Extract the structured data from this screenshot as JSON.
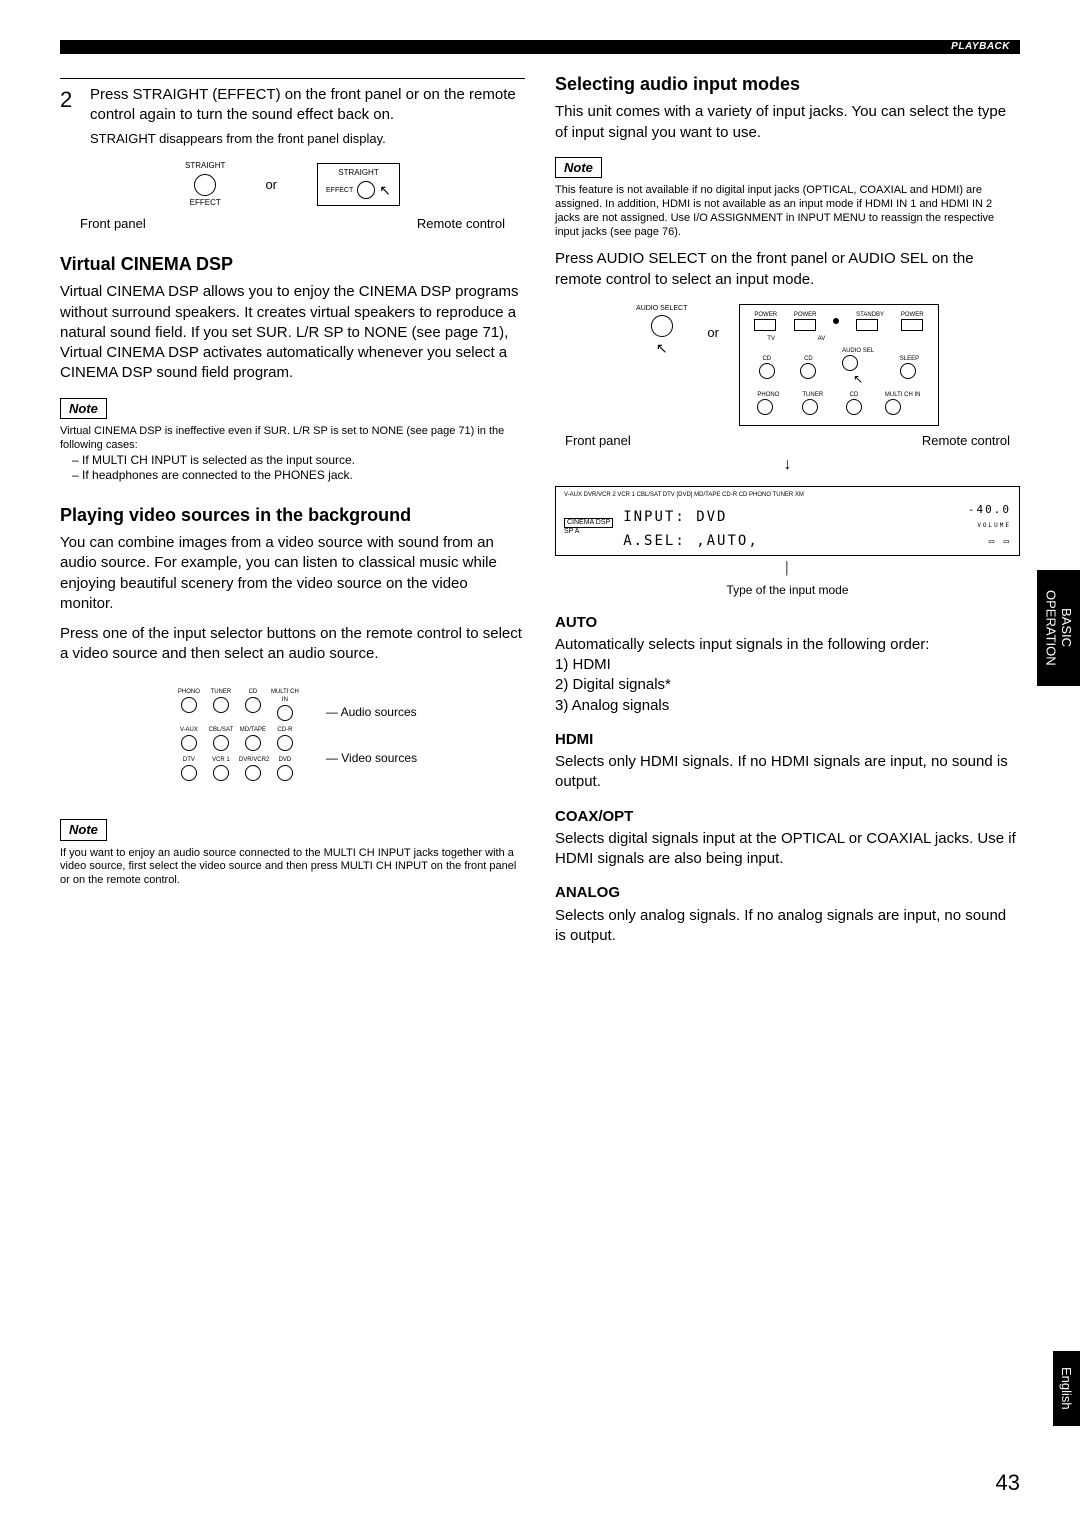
{
  "header": {
    "playback": "PLAYBACK"
  },
  "left": {
    "step2_num": "2",
    "step2_body": "Press STRAIGHT (EFFECT) on the front panel or on the remote control again to turn the sound effect back on.",
    "step2_sub": "STRAIGHT disappears from the front panel display.",
    "diag_or": "or",
    "diag_fp": "Front panel",
    "diag_rc": "Remote control",
    "diag_lbl1": "STRAIGHT",
    "diag_lbl2": "EFFECT",
    "vcdsp_h": "Virtual CINEMA DSP",
    "vcdsp_p": "Virtual CINEMA DSP allows you to enjoy the CINEMA DSP programs without surround speakers. It creates virtual speakers to reproduce a natural sound field. If you set SUR. L/R SP to NONE (see page 71), Virtual CINEMA DSP activates automatically whenever you select a CINEMA DSP sound field program.",
    "note_label": "Note",
    "vcdsp_note": "Virtual CINEMA DSP is ineffective even if SUR. L/R SP is set to NONE (see page 71) in the following cases:",
    "vcdsp_li1": "If MULTI CH INPUT is selected as the input source.",
    "vcdsp_li2": "If headphones are connected to the PHONES jack.",
    "play_h": "Playing video sources in the background",
    "play_p": "You can combine images from a video source with sound from an audio source. For example, you can listen to classical music while enjoying beautiful scenery from the video source on the video monitor.",
    "play_instr": "Press one of the input selector buttons on the remote control to select a video source and then select an audio source.",
    "audio_src_label": "Audio sources",
    "video_src_label": "Video sources",
    "src_labels": [
      "PHONO",
      "TUNER",
      "CD",
      "MULTI CH IN",
      "V-AUX",
      "CBL/SAT",
      "MD/TAPE",
      "CD-R",
      "DTV",
      "VCR 1",
      "DVR/VCR2",
      "DVD"
    ],
    "multich_note": "If you want to enjoy an audio source connected to the MULTI CH INPUT jacks together with a video source, first select the video source and then press MULTI CH INPUT on the front panel or on the remote control."
  },
  "right": {
    "sel_h": "Selecting audio input modes",
    "sel_p": "This unit comes with a variety of input jacks. You can select the type of input signal you want to use.",
    "note_label": "Note",
    "sel_note": "This feature is not available if no digital input jacks (OPTICAL, COAXIAL and HDMI) are assigned. In addition, HDMI is not available as an input mode if HDMI IN 1 and HDMI IN 2 jacks are not assigned. Use I/O ASSIGNMENT in INPUT MENU to reassign the respective input jacks (see page 76).",
    "sel_instr": "Press AUDIO SELECT on the front panel or AUDIO SEL on the remote   control to select an input mode.",
    "diag_or": "or",
    "diag_fp": "Front panel",
    "diag_rc": "Remote control",
    "diag_audio_select": "AUDIO SELECT",
    "rc_labels": {
      "power1": "POWER",
      "power2": "POWER",
      "standby": "STANDBY",
      "power3": "POWER",
      "tv": "TV",
      "av": "AV",
      "cd": "CD",
      "audiosel": "AUDIO SEL",
      "sleep": "SLEEP",
      "phono": "PHONO",
      "tuner": "TUNER",
      "cd2": "CD",
      "multi": "MULTI CH IN"
    },
    "lcd_top": "V-AUX  DVR/VCR 2   VCR 1   CBL/SAT   DTV   [DVD]   MD/TAPE   CD-R   CD   PHONO   TUNER   XM",
    "lcd_cinema": "CINEMA DSP",
    "lcd_input": "INPUT:  DVD",
    "lcd_asel": "A.SEL: ,AUTO,",
    "lcd_vol": "-40.0",
    "lcd_vol_lbl": "VOLUME",
    "lcd_sp": "SP A",
    "type_caption": "Type of the input mode",
    "auto_h": "AUTO",
    "auto_p": "Automatically selects input signals in the following order:",
    "auto_1": "1) HDMI",
    "auto_2": "2) Digital signals*",
    "auto_3": "3) Analog signals",
    "hdmi_h": "HDMI",
    "hdmi_p": "Selects only HDMI signals. If no HDMI signals are input, no sound is output.",
    "coax_h": "COAX/OPT",
    "coax_p": "Selects digital signals input at the OPTICAL or COAXIAL jacks. Use if HDMI signals are also being input.",
    "analog_h": "ANALOG",
    "analog_p": "Selects only analog signals. If no analog signals are input, no sound is output."
  },
  "tabs": {
    "side": "BASIC\nOPERATION",
    "english": "English"
  },
  "page": "43",
  "colors": {
    "bg": "#ffffff",
    "fg": "#000000",
    "tab_bg": "#000000",
    "tab_fg": "#ffffff"
  }
}
